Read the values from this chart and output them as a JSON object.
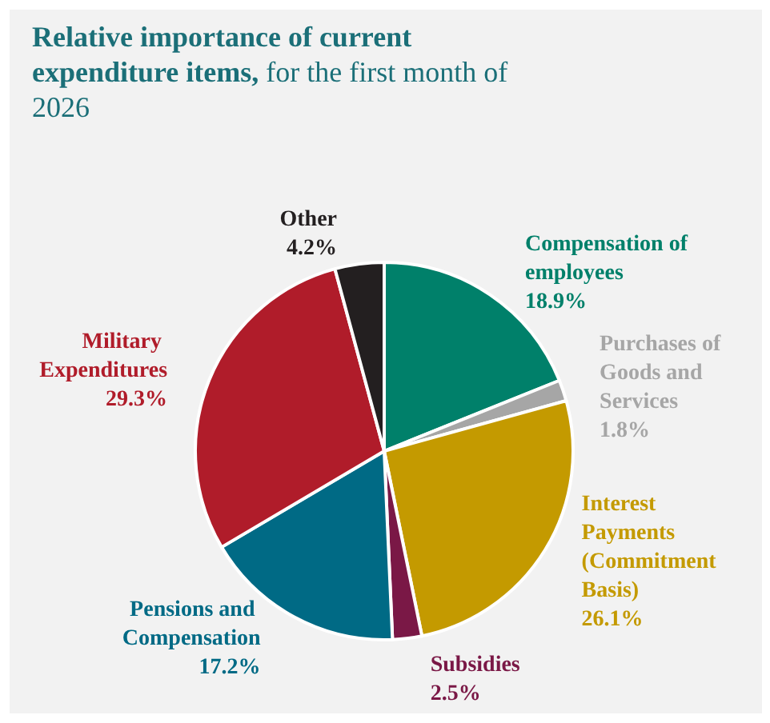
{
  "chart_data": {
    "type": "pie",
    "title": "Relative importance of current expenditure items,",
    "subtitle": "for the first month of 2026",
    "categories": [
      "Compensation of employees",
      "Purchases of Goods and Services",
      "Interest Payments (Commitment Basis)",
      "Subsidies",
      "Pensions and Compensation",
      "Military Expenditures",
      "Other"
    ],
    "values": [
      18.9,
      1.8,
      26.1,
      2.5,
      17.2,
      29.3,
      4.2
    ],
    "colors": [
      "#00806a",
      "#a6a6a6",
      "#c49a00",
      "#7a1846",
      "#006a85",
      "#b01c2a",
      "#231f20"
    ],
    "value_labels": [
      "18.9%",
      "1.8%",
      "26.1%",
      "2.5%",
      "17.2%",
      "29.3%",
      "4.2%"
    ],
    "legend": false
  }
}
